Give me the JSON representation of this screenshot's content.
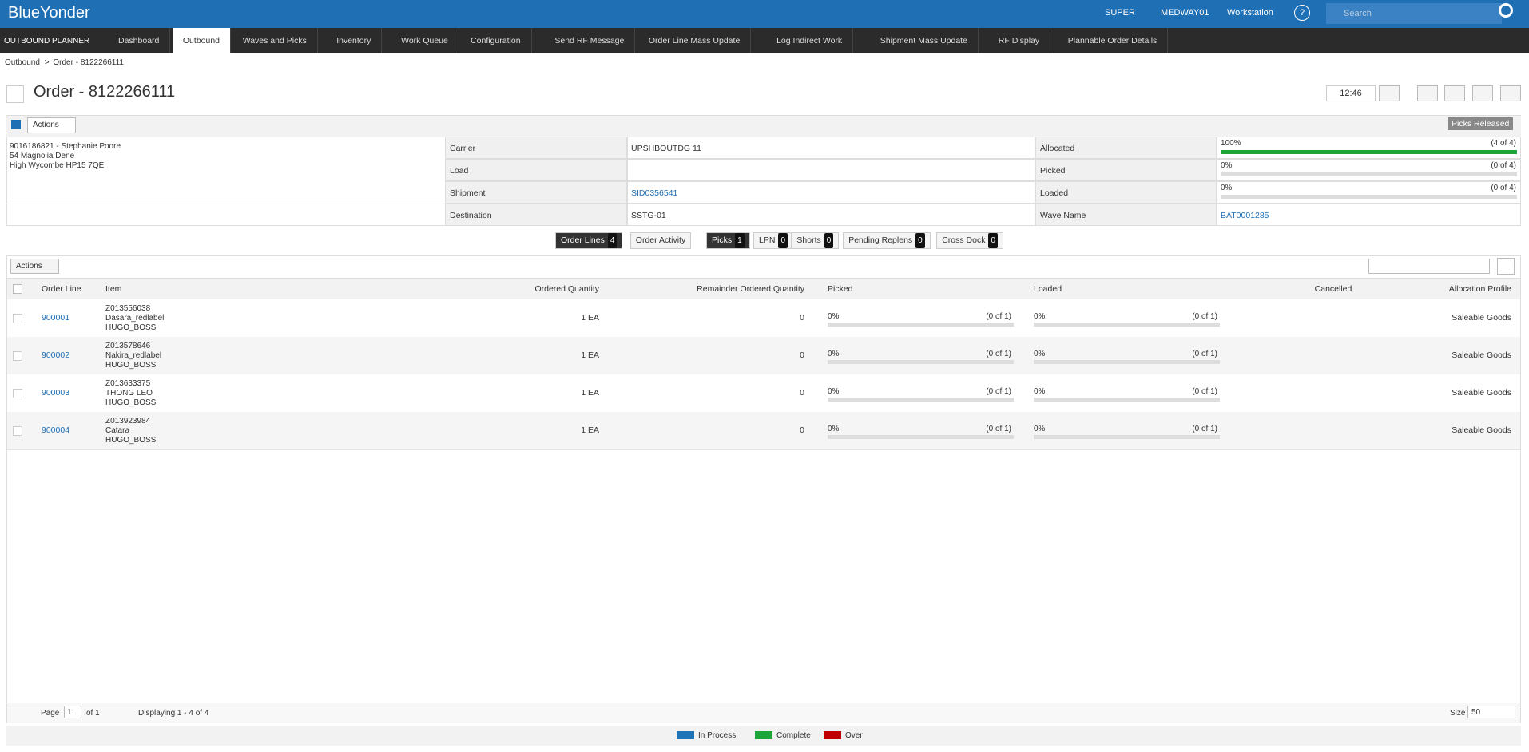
{
  "header": {
    "brand": "BlueYonder",
    "user": "SUPER",
    "site": "MEDWAY01",
    "workstation": "Workstation",
    "help": "?",
    "search": "Search"
  },
  "nav": {
    "app": "OUTBOUND PLANNER",
    "tabs": [
      "Dashboard",
      "Outbound",
      "Waves and Picks",
      "Inventory",
      "Work Queue",
      "Configuration",
      "Send RF Message",
      "Order Line Mass Update",
      "Log Indirect Work",
      "Shipment Mass Update",
      "RF Display",
      "Plannable Order Details"
    ]
  },
  "breadcrumb": [
    "Outbound",
    ">",
    "Order - 8122266111"
  ],
  "page_title": "Order - 8122266111",
  "clock": "12:46",
  "actions": "Actions",
  "status": "Picks Released",
  "address": [
    "9016186821 - Stephanie Poore",
    "54 Magnolia Dene",
    "High Wycombe HP15 7QE"
  ],
  "details": [
    {
      "label": "Carrier",
      "value": "UPSHBOUTDG 11"
    },
    {
      "label": "Load",
      "value": null
    },
    {
      "label": "Shipment",
      "value": "SID0356541"
    },
    {
      "label": "Destination",
      "value": "SSTG-01"
    }
  ],
  "progress": [
    {
      "label": "Allocated",
      "percent": "100%",
      "count": "(4 of 4)"
    },
    {
      "label": "Picked",
      "percent": "0%",
      "count": "(0 of 4)"
    },
    {
      "label": "Loaded",
      "percent": "0%",
      "count": "(0 of 4)"
    }
  ],
  "wave": {
    "label": "Wave Name",
    "value": "BAT0001285"
  },
  "subtabs": [
    {
      "label": "Order Lines",
      "count": 4
    },
    {
      "label": "Order Activity",
      "count": null
    },
    {
      "label": "Picks",
      "count": 1
    },
    {
      "label": "LPN",
      "count": 0
    },
    {
      "label": "Shorts",
      "count": 0
    },
    {
      "label": "Pending Replens",
      "count": 0
    },
    {
      "label": "Cross Dock",
      "count": 0
    }
  ],
  "grid": {
    "actions": "Actions",
    "columns": [
      "Order Line",
      "Item",
      "Ordered Quantity",
      "Remainder Ordered Quantity",
      "Picked",
      "Loaded",
      "Cancelled",
      "Allocation Profile"
    ],
    "rows": [
      {
        "order_line": "900001",
        "item": [
          "Z013556038",
          "Dasara_redlabel",
          "HUGO_BOSS"
        ],
        "ordered": "1 EA",
        "remainder": 0,
        "picked": {
          "percent": "0%",
          "count": "(0 of 1)"
        },
        "loaded": {
          "percent": "0%",
          "count": "(0 of 1)"
        },
        "profile": "Saleable Goods"
      },
      {
        "order_line": "900002",
        "item": [
          "Z013578646",
          "Nakira_redlabel",
          "HUGO_BOSS"
        ],
        "ordered": "1 EA",
        "remainder": 0,
        "picked": {
          "percent": "0%",
          "count": "(0 of 1)"
        },
        "loaded": {
          "percent": "0%",
          "count": "(0 of 1)"
        },
        "profile": "Saleable Goods"
      },
      {
        "order_line": "900003",
        "item": [
          "Z013633375",
          "THONG LEO",
          "HUGO_BOSS"
        ],
        "ordered": "1 EA",
        "remainder": 0,
        "picked": {
          "percent": "0%",
          "count": "(0 of 1)"
        },
        "loaded": {
          "percent": "0%",
          "count": "(0 of 1)"
        },
        "profile": "Saleable Goods"
      },
      {
        "order_line": "900004",
        "item": [
          "Z013923984",
          "Catara",
          "HUGO_BOSS"
        ],
        "ordered": "1 EA",
        "remainder": 0,
        "picked": {
          "percent": "0%",
          "count": "(0 of 1)"
        },
        "loaded": {
          "percent": "0%",
          "count": "(0 of 1)"
        },
        "profile": "Saleable Goods"
      }
    ]
  },
  "pager": {
    "page": "Page",
    "page_value": 1,
    "of": "of 1",
    "display": "Displaying 1 - 4 of 4",
    "size": "Size",
    "size_value": 50
  },
  "legend": [
    {
      "name": "In Process",
      "color": "#1f73b7"
    },
    {
      "name": "Complete",
      "color": "#1ea53a"
    },
    {
      "name": "Over",
      "color": "#c00000"
    }
  ]
}
